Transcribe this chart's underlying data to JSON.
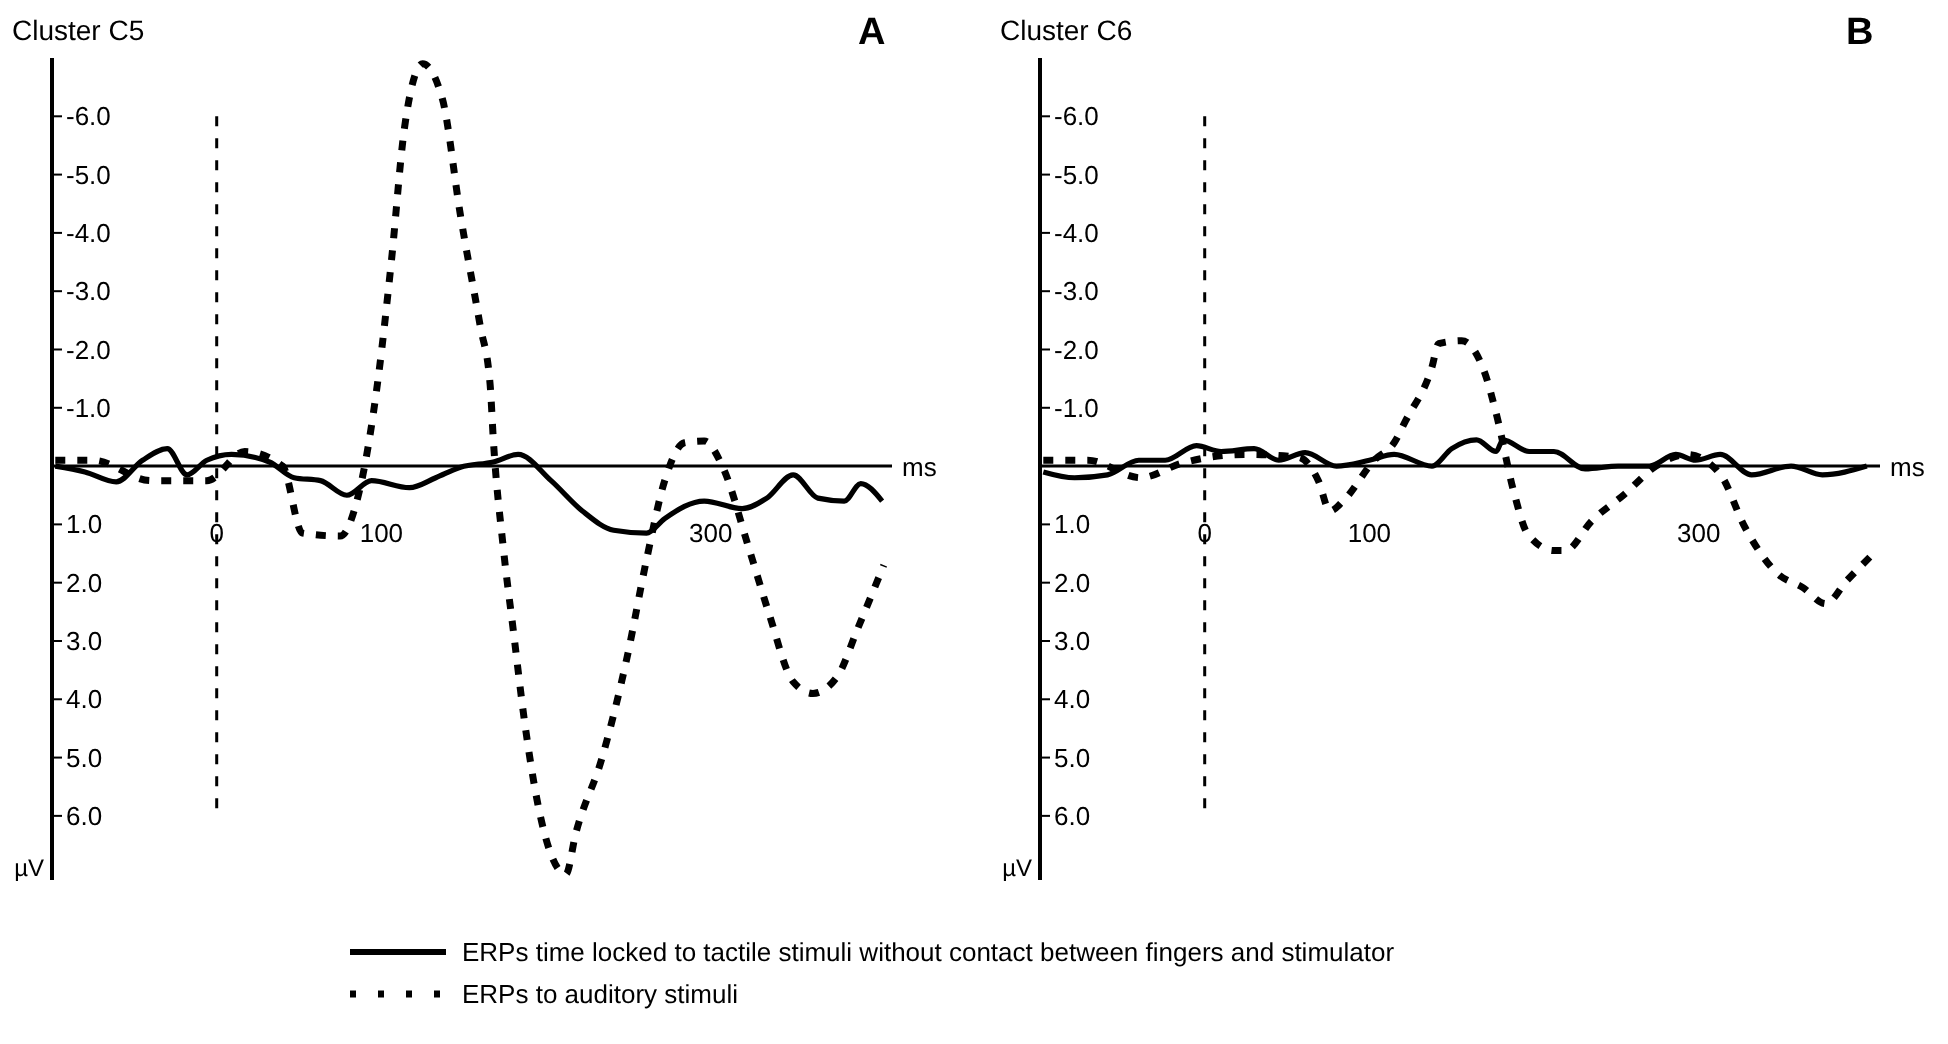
{
  "chart_data": [
    {
      "type": "line",
      "title": "Cluster C5",
      "annotations": [
        "A"
      ],
      "xlabel": "ms",
      "ylabel": "µV",
      "xlim": [
        -100,
        410
      ],
      "xticks": [
        0,
        100,
        300
      ],
      "ylim": [
        7.1,
        -7.0
      ],
      "yticks": [
        {
          "value": -6,
          "label": "-6.0"
        },
        {
          "value": -5,
          "label": "-5.0"
        },
        {
          "value": -4,
          "label": "-4.0"
        },
        {
          "value": -3,
          "label": "-3.0"
        },
        {
          "value": -2,
          "label": "-2.0"
        },
        {
          "value": -1,
          "label": "-1.0"
        },
        {
          "value": 0,
          "label": null
        },
        {
          "value": 1,
          "label": "1.0"
        },
        {
          "value": 2,
          "label": "2.0"
        },
        {
          "value": 3,
          "label": "3.0"
        },
        {
          "value": 4,
          "label": "4.0"
        },
        {
          "value": 5,
          "label": "5.0"
        },
        {
          "value": 6,
          "label": "6.0"
        }
      ],
      "grid": false,
      "legend": "bottom",
      "marker": "none",
      "ref_lines": [
        {
          "axis": "x",
          "value": 0,
          "line_style": "dashed",
          "color": "#000000"
        }
      ],
      "series": [
        {
          "name": "ERPs time locked to tactile stimuli without contact between fingers and stimulator",
          "color": "#000000",
          "line_style": "solid",
          "x": [
            -98,
            -80,
            -61,
            -45,
            -30,
            -18,
            -6,
            9,
            32,
            47,
            63,
            79,
            94,
            117,
            133,
            148,
            168,
            183,
            203,
            222,
            241,
            261,
            272,
            296,
            319,
            334,
            350,
            365,
            381,
            391,
            404
          ],
          "values": [
            0,
            0.1,
            0.27,
            -0.1,
            -0.3,
            0.15,
            -0.1,
            -0.2,
            -0.07,
            0.2,
            0.25,
            0.5,
            0.25,
            0.37,
            0.2,
            0.02,
            -0.07,
            -0.2,
            0.25,
            0.77,
            1.1,
            1.15,
            0.9,
            0.6,
            0.73,
            0.55,
            0.15,
            0.55,
            0.6,
            0.3,
            0.6
          ]
        },
        {
          "name": "ERPs to auditory stimuli",
          "color": "#000000",
          "line_style": "dashed",
          "x": [
            -98,
            -75,
            -40,
            -6,
            17,
            40,
            52,
            75,
            86,
            98,
            106,
            114,
            125,
            137,
            148,
            160,
            166,
            168,
            174,
            180,
            187,
            195,
            212,
            218,
            234,
            249,
            261,
            272,
            284,
            296,
            307,
            323,
            335,
            350,
            362,
            377,
            389,
            405
          ],
          "values": [
            -0.1,
            -0.1,
            0.25,
            0.25,
            -0.25,
            0,
            1.15,
            1.2,
            0.5,
            -1.5,
            -3.5,
            -5.8,
            -6.9,
            -6.3,
            -4.3,
            -2.4,
            -1.4,
            -0.43,
            1.4,
            2.8,
            4.4,
            5.8,
            7.0,
            6.3,
            5.0,
            3.3,
            1.6,
            0.25,
            -0.4,
            -0.43,
            0,
            1.4,
            2.5,
            3.7,
            3.9,
            3.6,
            2.8,
            1.7
          ]
        }
      ]
    },
    {
      "type": "line",
      "title": "Cluster C6",
      "annotations": [
        "B"
      ],
      "xlabel": "ms",
      "ylabel": "µV",
      "xlim": [
        -100,
        410
      ],
      "xticks": [
        0,
        100,
        300
      ],
      "ylim": [
        7.1,
        -7.0
      ],
      "yticks": [
        {
          "value": -6,
          "label": "-6.0"
        },
        {
          "value": -5,
          "label": "-5.0"
        },
        {
          "value": -4,
          "label": "-4.0"
        },
        {
          "value": -3,
          "label": "-3.0"
        },
        {
          "value": -2,
          "label": "-2.0"
        },
        {
          "value": -1,
          "label": "-1.0"
        },
        {
          "value": 0,
          "label": null
        },
        {
          "value": 1,
          "label": "1.0"
        },
        {
          "value": 2,
          "label": "2.0"
        },
        {
          "value": 3,
          "label": "3.0"
        },
        {
          "value": 4,
          "label": "4.0"
        },
        {
          "value": 5,
          "label": "5.0"
        },
        {
          "value": 6,
          "label": "6.0"
        }
      ],
      "grid": false,
      "marker": "none",
      "ref_lines": [
        {
          "axis": "x",
          "value": 0,
          "line_style": "dashed",
          "color": "#000000"
        }
      ],
      "series": [
        {
          "color": "#000000",
          "line_style": "solid",
          "x": [
            -98,
            -79,
            -59,
            -40,
            -24,
            -5,
            10,
            30,
            45,
            61,
            80,
            100,
            115,
            138,
            150,
            165,
            177,
            181,
            197,
            212,
            231,
            251,
            270,
            286,
            298,
            313,
            332,
            356,
            375,
            402
          ],
          "values": [
            0.1,
            0.2,
            0.15,
            -0.1,
            -0.1,
            -0.35,
            -0.25,
            -0.3,
            -0.1,
            -0.23,
            0,
            -0.1,
            -0.2,
            0,
            -0.3,
            -0.45,
            -0.25,
            -0.45,
            -0.25,
            -0.25,
            0.05,
            0,
            0,
            -0.2,
            -0.1,
            -0.2,
            0.15,
            0,
            0.15,
            0
          ]
        },
        {
          "color": "#000000",
          "line_style": "dashed",
          "x": [
            -98,
            -71,
            -39,
            -14,
            25,
            57,
            69,
            76,
            84,
            103,
            115,
            122,
            138,
            142,
            156,
            170,
            177,
            188,
            196,
            212,
            219,
            235,
            255,
            274,
            293,
            313,
            328,
            348,
            363,
            377,
            390,
            406
          ],
          "values": [
            -0.1,
            -0.1,
            0.2,
            -0.05,
            -0.2,
            -0.15,
            0.25,
            0.77,
            0.6,
            -0.1,
            -0.4,
            -0.78,
            -1.7,
            -2.1,
            -2.15,
            -1.6,
            -0.9,
            0.48,
            1.16,
            1.45,
            1.45,
            0.94,
            0.48,
            0,
            -0.2,
            0.14,
            1.05,
            1.85,
            2.08,
            2.36,
            1.96,
            1.5
          ]
        }
      ]
    }
  ]
}
